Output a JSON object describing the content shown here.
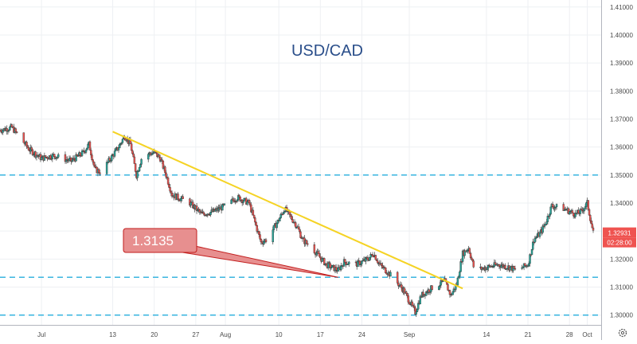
{
  "chart_data": {
    "type": "candlestick",
    "title": "USD/CAD",
    "ylim": [
      1.2965,
      1.4125
    ],
    "x_range": [
      "2020-06-24",
      "2020-10-02"
    ],
    "x_ticks": [
      {
        "date": "2020-07-01",
        "label": "Jul"
      },
      {
        "date": "2020-07-13",
        "label": "13"
      },
      {
        "date": "2020-07-20",
        "label": "20"
      },
      {
        "date": "2020-07-27",
        "label": "27"
      },
      {
        "date": "2020-08-01",
        "label": "Aug"
      },
      {
        "date": "2020-08-10",
        "label": "10"
      },
      {
        "date": "2020-08-17",
        "label": "17"
      },
      {
        "date": "2020-08-24",
        "label": "24"
      },
      {
        "date": "2020-09-01",
        "label": "Sep"
      },
      {
        "date": "2020-09-14",
        "label": "14"
      },
      {
        "date": "2020-09-21",
        "label": "21"
      },
      {
        "date": "2020-09-28",
        "label": "28"
      },
      {
        "date": "2020-10-01",
        "label": "Oct"
      }
    ],
    "y_ticks": [
      "1.30000",
      "1.31000",
      "1.32000",
      "1.33000",
      "1.34000",
      "1.35000",
      "1.36000",
      "1.37000",
      "1.38000",
      "1.39000",
      "1.40000",
      "1.41000"
    ],
    "path": [
      {
        "d": "2020-06-24",
        "v": 1.366
      },
      {
        "d": "2020-06-26",
        "v": 1.367
      },
      {
        "d": "2020-06-29",
        "v": 1.359
      },
      {
        "d": "2020-07-01",
        "v": 1.356
      },
      {
        "d": "2020-07-03",
        "v": 1.357
      },
      {
        "d": "2020-07-06",
        "v": 1.355
      },
      {
        "d": "2020-07-08",
        "v": 1.358
      },
      {
        "d": "2020-07-09",
        "v": 1.361
      },
      {
        "d": "2020-07-10",
        "v": 1.352
      },
      {
        "d": "2020-07-11",
        "v": 1.351
      },
      {
        "d": "2020-07-13",
        "v": 1.357
      },
      {
        "d": "2020-07-14",
        "v": 1.36
      },
      {
        "d": "2020-07-15",
        "v": 1.364
      },
      {
        "d": "2020-07-16",
        "v": 1.361
      },
      {
        "d": "2020-07-17",
        "v": 1.35
      },
      {
        "d": "2020-07-18",
        "v": 1.357
      },
      {
        "d": "2020-07-20",
        "v": 1.358
      },
      {
        "d": "2020-07-21",
        "v": 1.356
      },
      {
        "d": "2020-07-22",
        "v": 1.35
      },
      {
        "d": "2020-07-23",
        "v": 1.343
      },
      {
        "d": "2020-07-24",
        "v": 1.342
      },
      {
        "d": "2020-07-26",
        "v": 1.34
      },
      {
        "d": "2020-07-27",
        "v": 1.338
      },
      {
        "d": "2020-07-28",
        "v": 1.336
      },
      {
        "d": "2020-07-30",
        "v": 1.337
      },
      {
        "d": "2020-08-01",
        "v": 1.339
      },
      {
        "d": "2020-08-03",
        "v": 1.342
      },
      {
        "d": "2020-08-05",
        "v": 1.34
      },
      {
        "d": "2020-08-06",
        "v": 1.333
      },
      {
        "d": "2020-08-07",
        "v": 1.326
      },
      {
        "d": "2020-08-08",
        "v": 1.327
      },
      {
        "d": "2020-08-10",
        "v": 1.334
      },
      {
        "d": "2020-08-11",
        "v": 1.338
      },
      {
        "d": "2020-08-13",
        "v": 1.332
      },
      {
        "d": "2020-08-14",
        "v": 1.327
      },
      {
        "d": "2020-08-16",
        "v": 1.323
      },
      {
        "d": "2020-08-18",
        "v": 1.318
      },
      {
        "d": "2020-08-20",
        "v": 1.316
      },
      {
        "d": "2020-08-21",
        "v": 1.319
      },
      {
        "d": "2020-08-23",
        "v": 1.318
      },
      {
        "d": "2020-08-25",
        "v": 1.32
      },
      {
        "d": "2020-08-26",
        "v": 1.322
      },
      {
        "d": "2020-08-27",
        "v": 1.318
      },
      {
        "d": "2020-08-29",
        "v": 1.314
      },
      {
        "d": "2020-08-31",
        "v": 1.309
      },
      {
        "d": "2020-09-01",
        "v": 1.305
      },
      {
        "d": "2020-09-02",
        "v": 1.301
      },
      {
        "d": "2020-09-03",
        "v": 1.307
      },
      {
        "d": "2020-09-05",
        "v": 1.31
      },
      {
        "d": "2020-09-07",
        "v": 1.312
      },
      {
        "d": "2020-09-08",
        "v": 1.307
      },
      {
        "d": "2020-09-09",
        "v": 1.311
      },
      {
        "d": "2020-09-10",
        "v": 1.322
      },
      {
        "d": "2020-09-11",
        "v": 1.324
      },
      {
        "d": "2020-09-12",
        "v": 1.316
      },
      {
        "d": "2020-09-14",
        "v": 1.317
      },
      {
        "d": "2020-09-16",
        "v": 1.318
      },
      {
        "d": "2020-09-18",
        "v": 1.317
      },
      {
        "d": "2020-09-19",
        "v": 1.316
      },
      {
        "d": "2020-09-21",
        "v": 1.318
      },
      {
        "d": "2020-09-22",
        "v": 1.327
      },
      {
        "d": "2020-09-23",
        "v": 1.329
      },
      {
        "d": "2020-09-24",
        "v": 1.333
      },
      {
        "d": "2020-09-25",
        "v": 1.339
      },
      {
        "d": "2020-09-27",
        "v": 1.338
      },
      {
        "d": "2020-09-28",
        "v": 1.337
      },
      {
        "d": "2020-09-29",
        "v": 1.336
      },
      {
        "d": "2020-09-30",
        "v": 1.337
      },
      {
        "d": "2020-10-01",
        "v": 1.34
      },
      {
        "d": "2020-10-02",
        "v": 1.3293
      }
    ],
    "horizontal_levels": [
      1.3135,
      1.3,
      1.35
    ],
    "trendline": {
      "start": {
        "d": "2020-07-13",
        "v": 1.3655
      },
      "end": {
        "d": "2020-09-10",
        "v": 1.3095
      }
    },
    "callout": {
      "label": "1.3135",
      "points_to": {
        "d": "2020-08-20",
        "v": 1.3135
      }
    },
    "last_price": {
      "value": 1.3293,
      "label": "1.32931",
      "countdown": "02:28:00"
    },
    "colors": {
      "up": "#26a69a",
      "down": "#ef5350",
      "wick": "#555555",
      "level": "#27aedd",
      "trendline": "#f5d324",
      "callout_fill": "#e78f8f",
      "callout_border": "#c21e1e",
      "title": "#2a4e8a",
      "price_tag": "#ef5350"
    }
  }
}
